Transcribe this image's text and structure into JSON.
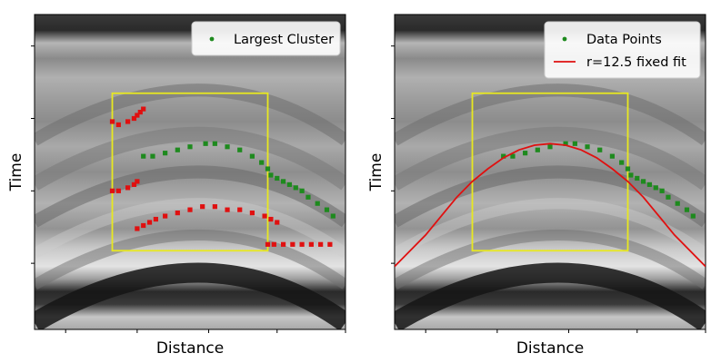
{
  "chart_data": [
    {
      "type": "scatter",
      "title": "",
      "xlabel": "Distance",
      "ylabel": "Time",
      "xlim": [
        0,
        100
      ],
      "ylim": [
        0,
        100
      ],
      "y_inverted": true,
      "grid": false,
      "background": "grayscale radargram image with hyperbolic reflections",
      "legend": {
        "placement": "top-right",
        "entries": [
          "Largest Cluster"
        ]
      },
      "region_box": {
        "x": [
          25,
          75
        ],
        "y": [
          25,
          75
        ],
        "color": "#e8e820"
      },
      "series": [
        {
          "name": "Largest Cluster",
          "color": "#1e8a1e",
          "points": [
            [
              35,
              45
            ],
            [
              38,
              45
            ],
            [
              42,
              44
            ],
            [
              46,
              43
            ],
            [
              50,
              42
            ],
            [
              55,
              41
            ],
            [
              58,
              41
            ],
            [
              62,
              42
            ],
            [
              66,
              43
            ],
            [
              70,
              45
            ],
            [
              73,
              47
            ],
            [
              75,
              49
            ],
            [
              76,
              51
            ],
            [
              78,
              52
            ],
            [
              80,
              53
            ],
            [
              82,
              54
            ],
            [
              84,
              55
            ],
            [
              86,
              56
            ],
            [
              88,
              58
            ],
            [
              91,
              60
            ],
            [
              94,
              62
            ],
            [
              96,
              64
            ]
          ]
        },
        {
          "color": "#e01010",
          "points": [
            [
              25,
              34
            ],
            [
              27,
              35
            ],
            [
              30,
              34
            ],
            [
              32,
              33
            ],
            [
              33,
              32
            ],
            [
              34,
              31
            ],
            [
              35,
              30
            ],
            [
              25,
              56
            ],
            [
              27,
              56
            ],
            [
              30,
              55
            ],
            [
              32,
              54
            ],
            [
              33,
              53
            ],
            [
              33,
              68
            ],
            [
              35,
              67
            ],
            [
              37,
              66
            ],
            [
              39,
              65
            ],
            [
              42,
              64
            ],
            [
              46,
              63
            ],
            [
              50,
              62
            ],
            [
              54,
              61
            ],
            [
              58,
              61
            ],
            [
              62,
              62
            ],
            [
              66,
              62
            ],
            [
              70,
              63
            ],
            [
              74,
              64
            ],
            [
              76,
              65
            ],
            [
              78,
              66
            ],
            [
              75,
              73
            ],
            [
              77,
              73
            ],
            [
              80,
              73
            ],
            [
              83,
              73
            ],
            [
              86,
              73
            ],
            [
              89,
              73
            ],
            [
              92,
              73
            ],
            [
              95,
              73
            ]
          ]
        }
      ]
    },
    {
      "type": "scatter",
      "title": "",
      "xlabel": "Distance",
      "ylabel": "Time",
      "xlim": [
        0,
        100
      ],
      "ylim": [
        0,
        100
      ],
      "y_inverted": true,
      "grid": false,
      "background": "grayscale radargram image with hyperbolic reflections",
      "legend": {
        "placement": "top-right",
        "entries": [
          "Data Points",
          "r=12.5 fixed fit"
        ]
      },
      "region_box": {
        "x": [
          25,
          75
        ],
        "y": [
          25,
          75
        ],
        "color": "#e8e820"
      },
      "series": [
        {
          "name": "Data Points",
          "color": "#1e8a1e",
          "points": [
            [
              35,
              45
            ],
            [
              38,
              45
            ],
            [
              42,
              44
            ],
            [
              46,
              43
            ],
            [
              50,
              42
            ],
            [
              55,
              41
            ],
            [
              58,
              41
            ],
            [
              62,
              42
            ],
            [
              66,
              43
            ],
            [
              70,
              45
            ],
            [
              73,
              47
            ],
            [
              75,
              49
            ],
            [
              76,
              51
            ],
            [
              78,
              52
            ],
            [
              80,
              53
            ],
            [
              82,
              54
            ],
            [
              84,
              55
            ],
            [
              86,
              56
            ],
            [
              88,
              58
            ],
            [
              91,
              60
            ],
            [
              94,
              62
            ],
            [
              96,
              64
            ]
          ]
        },
        {
          "name": "r=12.5 fixed fit",
          "color": "#e01010",
          "type": "line",
          "points": [
            [
              0,
              80
            ],
            [
              5,
              75
            ],
            [
              10,
              70
            ],
            [
              15,
              64
            ],
            [
              20,
              58
            ],
            [
              25,
              53
            ],
            [
              30,
              49
            ],
            [
              35,
              45.5
            ],
            [
              40,
              43
            ],
            [
              45,
              41.5
            ],
            [
              50,
              41
            ],
            [
              55,
              41.5
            ],
            [
              60,
              43
            ],
            [
              65,
              45.5
            ],
            [
              70,
              49
            ],
            [
              75,
              53
            ],
            [
              80,
              58
            ],
            [
              85,
              64
            ],
            [
              90,
              70
            ],
            [
              95,
              75
            ],
            [
              100,
              80
            ]
          ]
        }
      ]
    }
  ]
}
